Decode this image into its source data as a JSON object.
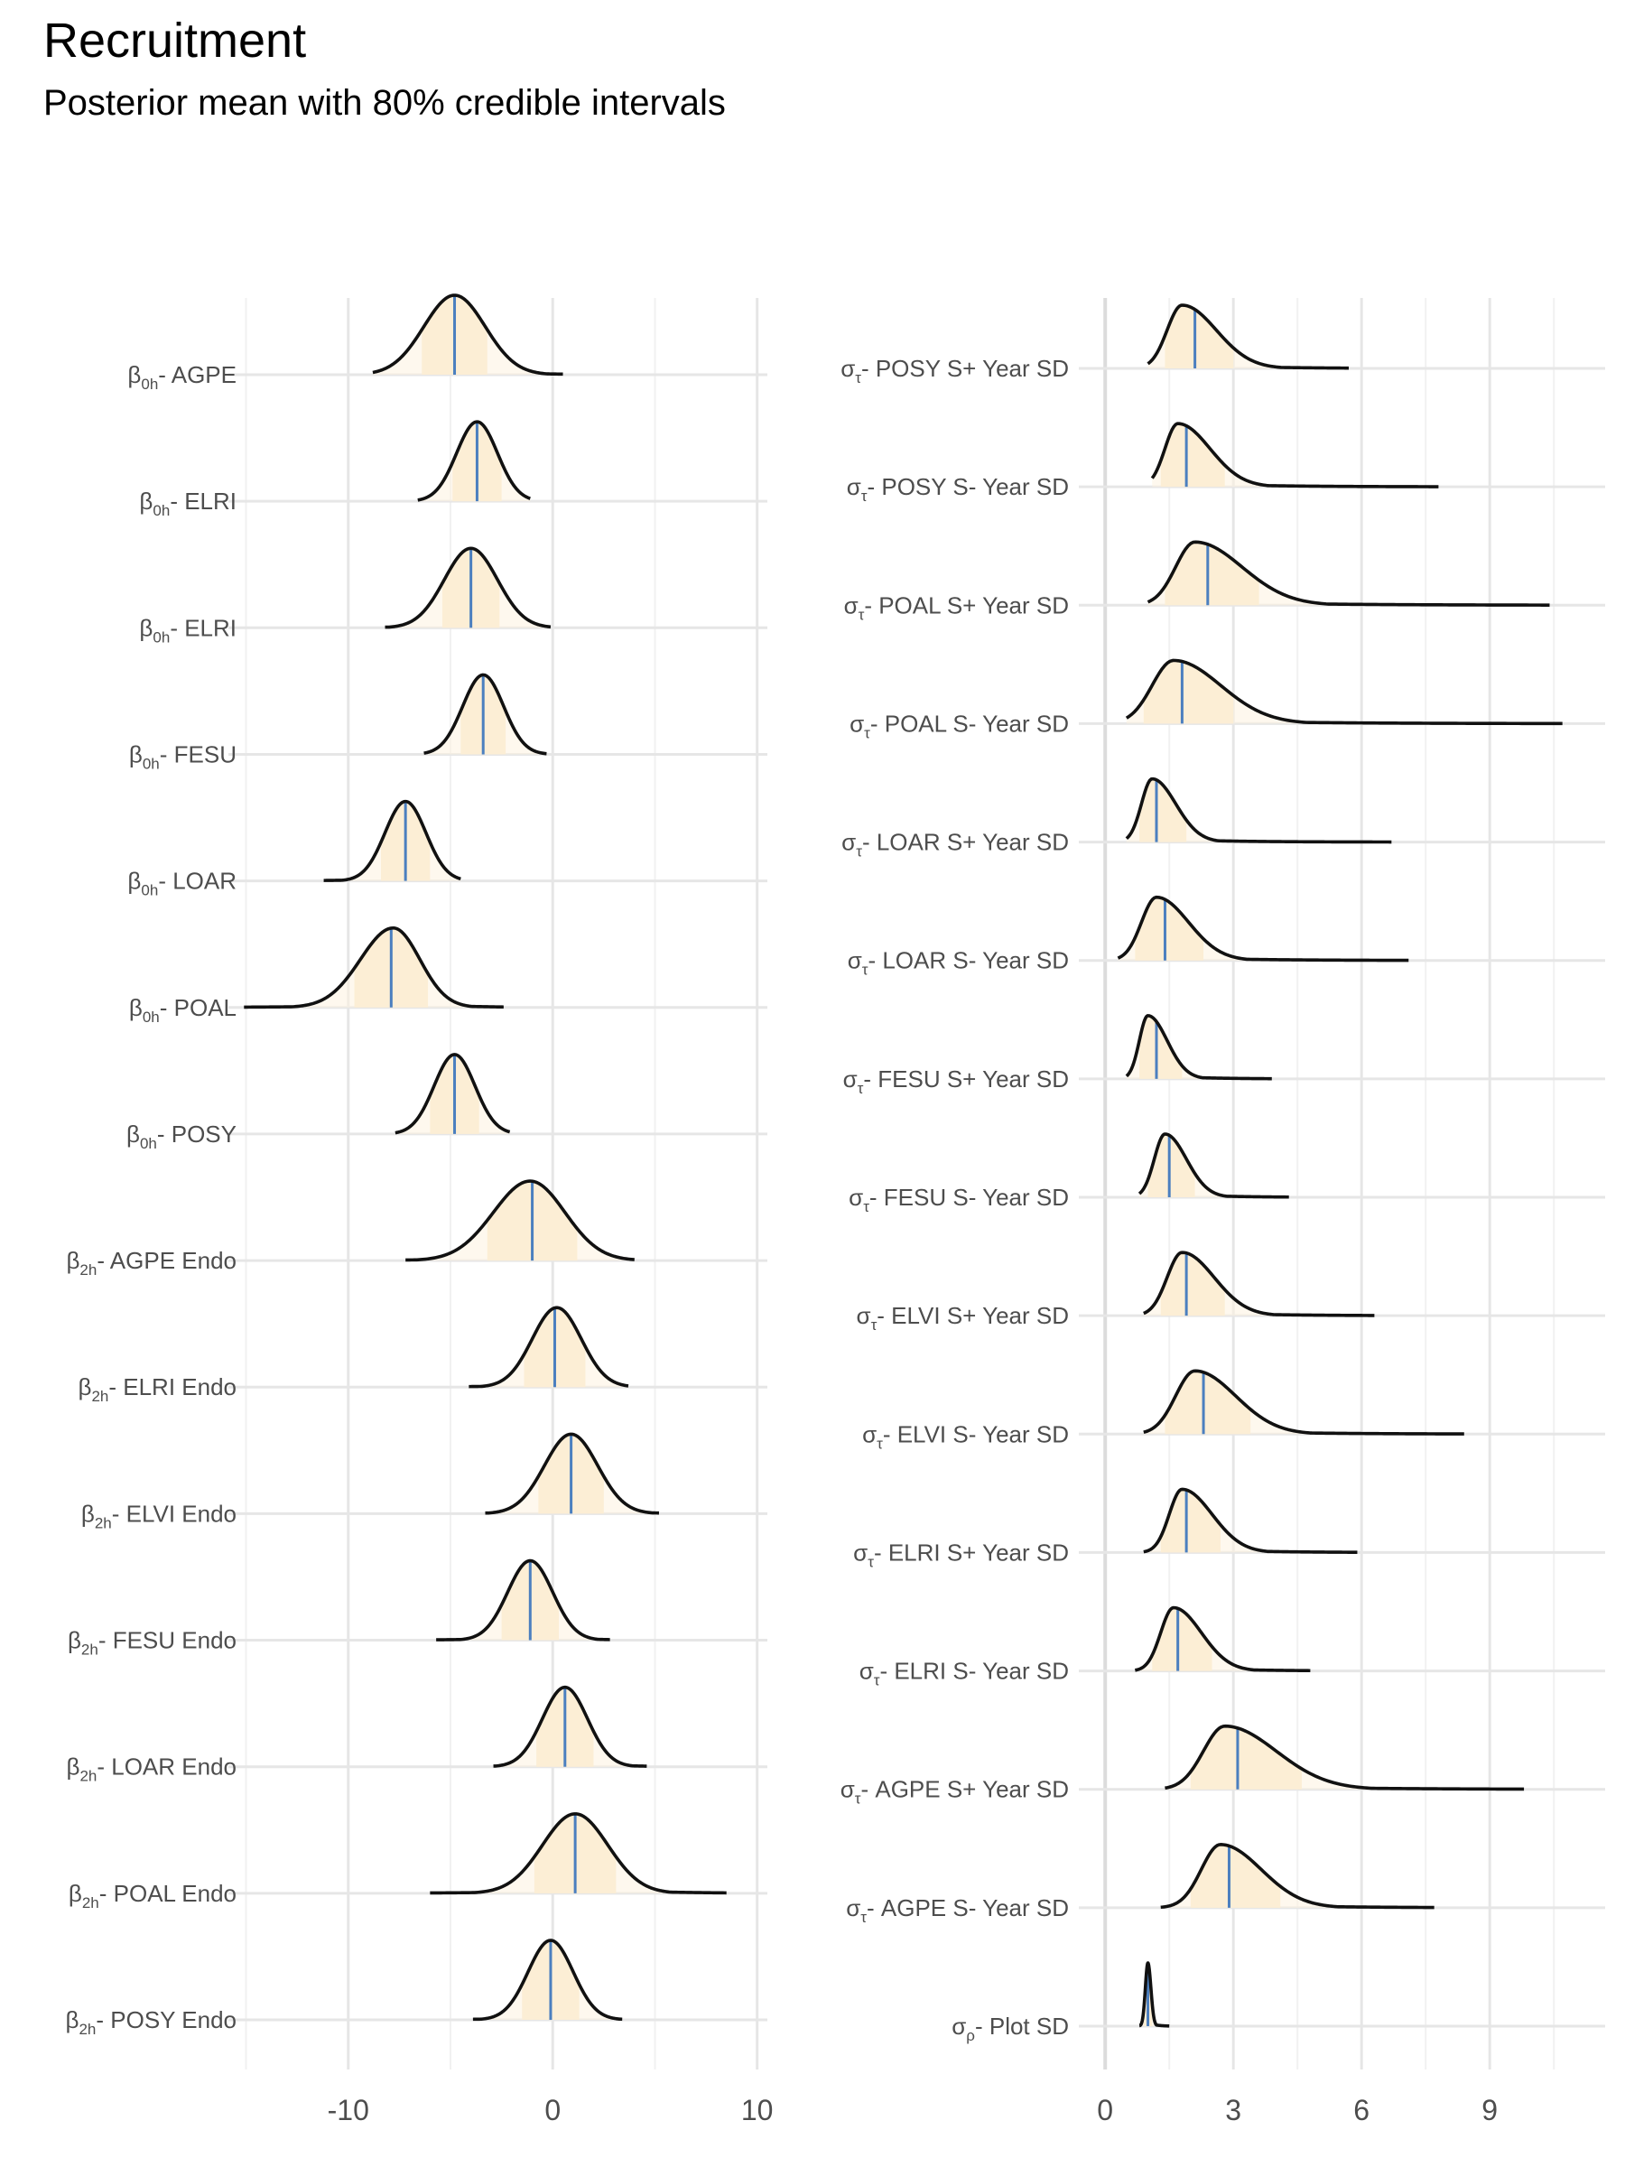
{
  "chart_data": [
    {
      "type": "density",
      "panel": "left",
      "title": "Recruitment",
      "subtitle": "Posterior mean with 80% credible intervals",
      "xlabel": "",
      "ylabel": "",
      "xlim": [
        -15.2,
        10.5
      ],
      "xticks": [
        -10,
        0,
        10
      ],
      "grid": true,
      "series": [
        {
          "sym": "β",
          "sub": "0h",
          "text": "- AGPE",
          "mean": -4.8,
          "mode": -4.8,
          "lower": -8.8,
          "upper": 0.5,
          "ci80": [
            -6.4,
            -3.2
          ],
          "sd_l": 1.5,
          "sd_r": 1.5
        },
        {
          "sym": "β",
          "sub": "0h",
          "text": "- ELRI",
          "mean": -3.7,
          "mode": -3.7,
          "lower": -6.6,
          "upper": -1.1,
          "ci80": [
            -4.9,
            -2.5
          ],
          "sd_l": 1.0,
          "sd_r": 1.0
        },
        {
          "sym": "β",
          "sub": "0h",
          "text": "- ELRI",
          "mean": -4.0,
          "mode": -4.0,
          "lower": -8.2,
          "upper": -0.1,
          "ci80": [
            -5.4,
            -2.6
          ],
          "sd_l": 1.3,
          "sd_r": 1.3
        },
        {
          "sym": "β",
          "sub": "0h",
          "text": "- FESU",
          "mean": -3.4,
          "mode": -3.4,
          "lower": -6.3,
          "upper": -0.3,
          "ci80": [
            -4.5,
            -2.3
          ],
          "sd_l": 1.0,
          "sd_r": 1.0
        },
        {
          "sym": "β",
          "sub": "0h",
          "text": "- LOAR",
          "mean": -7.2,
          "mode": -7.2,
          "lower": -11.2,
          "upper": -4.5,
          "ci80": [
            -8.4,
            -6.0
          ],
          "sd_l": 1.0,
          "sd_r": 1.0
        },
        {
          "sym": "β",
          "sub": "0h",
          "text": "- POAL",
          "mean": -7.9,
          "mode": -7.8,
          "lower": -15.1,
          "upper": -2.4,
          "ci80": [
            -9.7,
            -6.1
          ],
          "sd_l": 1.6,
          "sd_r": 1.3
        },
        {
          "sym": "β",
          "sub": "0h",
          "text": "- POSY",
          "mean": -4.8,
          "mode": -4.8,
          "lower": -7.7,
          "upper": -2.1,
          "ci80": [
            -6.0,
            -3.6
          ],
          "sd_l": 1.0,
          "sd_r": 1.0
        },
        {
          "sym": "β",
          "sub": "2h",
          "text": "- AGPE Endo",
          "mean": -1.0,
          "mode": -1.1,
          "lower": -7.2,
          "upper": 4.0,
          "ci80": [
            -3.2,
            1.2
          ],
          "sd_l": 1.8,
          "sd_r": 1.7
        },
        {
          "sym": "β",
          "sub": "2h",
          "text": "- ELRI Endo",
          "mean": 0.1,
          "mode": 0.2,
          "lower": -4.1,
          "upper": 3.7,
          "ci80": [
            -1.4,
            1.6
          ],
          "sd_l": 1.2,
          "sd_r": 1.2
        },
        {
          "sym": "β",
          "sub": "2h",
          "text": "- ELVI Endo",
          "mean": 0.9,
          "mode": 0.9,
          "lower": -3.3,
          "upper": 5.2,
          "ci80": [
            -0.7,
            2.5
          ],
          "sd_l": 1.3,
          "sd_r": 1.3
        },
        {
          "sym": "β",
          "sub": "2h",
          "text": "- FESU Endo",
          "mean": -1.1,
          "mode": -1.1,
          "lower": -5.7,
          "upper": 2.8,
          "ci80": [
            -2.5,
            0.3
          ],
          "sd_l": 1.1,
          "sd_r": 1.1
        },
        {
          "sym": "β",
          "sub": "2h",
          "text": "- LOAR Endo",
          "mean": 0.6,
          "mode": 0.6,
          "lower": -2.9,
          "upper": 4.6,
          "ci80": [
            -0.8,
            2.0
          ],
          "sd_l": 1.1,
          "sd_r": 1.1
        },
        {
          "sym": "β",
          "sub": "2h",
          "text": "- POAL Endo",
          "mean": 1.1,
          "mode": 1.1,
          "lower": -6.0,
          "upper": 8.5,
          "ci80": [
            -0.9,
            3.1
          ],
          "sd_l": 1.6,
          "sd_r": 1.6
        },
        {
          "sym": "β",
          "sub": "2h",
          "text": "- POSY Endo",
          "mean": -0.1,
          "mode": -0.1,
          "lower": -3.9,
          "upper": 3.4,
          "ci80": [
            -1.5,
            1.3
          ],
          "sd_l": 1.1,
          "sd_r": 1.1
        }
      ]
    },
    {
      "type": "density",
      "panel": "right",
      "xlabel": "",
      "ylabel": "",
      "xlim": [
        -0.3,
        11.7
      ],
      "xticks": [
        0,
        3,
        6,
        9
      ],
      "grid": true,
      "series": [
        {
          "sym": "σ",
          "sub": "τ",
          "text": "- POSY S+ Year SD",
          "mean": 2.1,
          "mode": 1.8,
          "lower": 1.0,
          "upper": 5.7,
          "ci80": [
            1.4,
            3.0
          ],
          "sd_l": 0.35,
          "sd_r": 0.8
        },
        {
          "sym": "σ",
          "sub": "τ",
          "text": "- POSY S- Year SD",
          "mean": 1.9,
          "mode": 1.7,
          "lower": 1.1,
          "upper": 7.8,
          "ci80": [
            1.3,
            2.8
          ],
          "sd_l": 0.3,
          "sd_r": 0.75
        },
        {
          "sym": "σ",
          "sub": "τ",
          "text": "- POAL S+ Year SD",
          "mean": 2.4,
          "mode": 2.1,
          "lower": 1.0,
          "upper": 10.4,
          "ci80": [
            1.4,
            3.6
          ],
          "sd_l": 0.45,
          "sd_r": 1.1
        },
        {
          "sym": "σ",
          "sub": "τ",
          "text": "- POAL S- Year SD",
          "mean": 1.8,
          "mode": 1.6,
          "lower": 0.5,
          "upper": 10.7,
          "ci80": [
            0.9,
            3.0
          ],
          "sd_l": 0.5,
          "sd_r": 1.1
        },
        {
          "sym": "σ",
          "sub": "τ",
          "text": "- LOAR S+ Year SD",
          "mean": 1.2,
          "mode": 1.1,
          "lower": 0.5,
          "upper": 6.7,
          "ci80": [
            0.8,
            1.9
          ],
          "sd_l": 0.25,
          "sd_r": 0.55
        },
        {
          "sym": "σ",
          "sub": "τ",
          "text": "- LOAR S- Year SD",
          "mean": 1.4,
          "mode": 1.2,
          "lower": 0.3,
          "upper": 7.1,
          "ci80": [
            0.7,
            2.3
          ],
          "sd_l": 0.35,
          "sd_r": 0.75
        },
        {
          "sym": "σ",
          "sub": "τ",
          "text": "- FESU S+ Year SD",
          "mean": 1.2,
          "mode": 1.0,
          "lower": 0.5,
          "upper": 3.9,
          "ci80": [
            0.8,
            1.8
          ],
          "sd_l": 0.2,
          "sd_r": 0.45
        },
        {
          "sym": "σ",
          "sub": "τ",
          "text": "- FESU S- Year SD",
          "mean": 1.5,
          "mode": 1.4,
          "lower": 0.8,
          "upper": 4.3,
          "ci80": [
            1.0,
            2.1
          ],
          "sd_l": 0.25,
          "sd_r": 0.5
        },
        {
          "sym": "σ",
          "sub": "τ",
          "text": "- ELVI S+ Year SD",
          "mean": 1.9,
          "mode": 1.8,
          "lower": 0.9,
          "upper": 6.3,
          "ci80": [
            1.3,
            2.8
          ],
          "sd_l": 0.35,
          "sd_r": 0.75
        },
        {
          "sym": "σ",
          "sub": "τ",
          "text": "- ELVI S- Year SD",
          "mean": 2.3,
          "mode": 2.1,
          "lower": 0.9,
          "upper": 8.4,
          "ci80": [
            1.4,
            3.4
          ],
          "sd_l": 0.45,
          "sd_r": 0.95
        },
        {
          "sym": "σ",
          "sub": "τ",
          "text": "- ELRI S+ Year SD",
          "mean": 1.9,
          "mode": 1.8,
          "lower": 0.9,
          "upper": 5.9,
          "ci80": [
            1.3,
            2.7
          ],
          "sd_l": 0.3,
          "sd_r": 0.7
        },
        {
          "sym": "σ",
          "sub": "τ",
          "text": "- ELRI S- Year SD",
          "mean": 1.7,
          "mode": 1.6,
          "lower": 0.7,
          "upper": 4.8,
          "ci80": [
            1.1,
            2.5
          ],
          "sd_l": 0.3,
          "sd_r": 0.65
        },
        {
          "sym": "σ",
          "sub": "τ",
          "text": "- AGPE S+ Year SD",
          "mean": 3.1,
          "mode": 2.8,
          "lower": 1.4,
          "upper": 9.8,
          "ci80": [
            2.0,
            4.6
          ],
          "sd_l": 0.5,
          "sd_r": 1.2
        },
        {
          "sym": "σ",
          "sub": "τ",
          "text": "- AGPE S- Year SD",
          "mean": 2.9,
          "mode": 2.7,
          "lower": 1.3,
          "upper": 7.7,
          "ci80": [
            2.0,
            4.1
          ],
          "sd_l": 0.45,
          "sd_r": 0.95
        },
        {
          "sym": "σ",
          "sub": "ρ",
          "text": "- Plot SD",
          "mean": 1.0,
          "mode": 1.0,
          "lower": 0.8,
          "upper": 1.5,
          "ci80": [
            0.9,
            1.1
          ],
          "sd_l": 0.06,
          "sd_r": 0.07
        }
      ]
    }
  ]
}
